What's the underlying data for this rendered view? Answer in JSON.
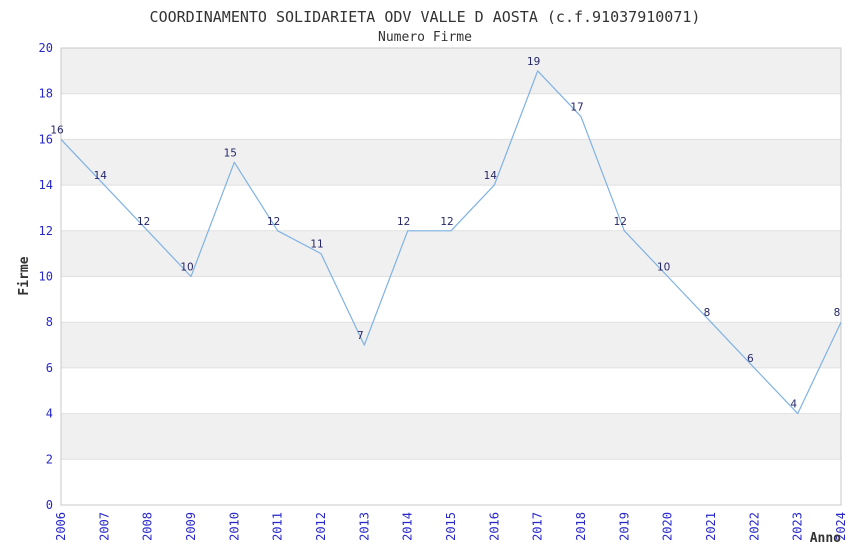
{
  "chart_data": {
    "type": "line",
    "title": "COORDINAMENTO SOLIDARIETA ODV VALLE D AOSTA (c.f.91037910071)",
    "subtitle": "Numero Firme",
    "xlabel": "Anno",
    "ylabel": "Firme",
    "categories": [
      "2006",
      "2007",
      "2008",
      "2009",
      "2010",
      "2011",
      "2012",
      "2013",
      "2014",
      "2015",
      "2016",
      "2017",
      "2018",
      "2019",
      "2020",
      "2021",
      "2022",
      "2023",
      "2024"
    ],
    "series": [
      {
        "name": "Numero Firme",
        "values": [
          16,
          14,
          12,
          10,
          15,
          12,
          11,
          7,
          12,
          12,
          14,
          19,
          17,
          12,
          10,
          8,
          6,
          4,
          8
        ]
      }
    ],
    "ylim": [
      0,
      20
    ],
    "ytick_step": 2,
    "yticks": [
      0,
      2,
      4,
      6,
      8,
      10,
      12,
      14,
      16,
      18,
      20
    ],
    "grid": "horizontal-bands-alternating",
    "legend_position": "none",
    "data_labels_visible": true,
    "x_tick_rotation_deg": -90,
    "colors": {
      "line": "#7FB2E5",
      "data_label": "#26266A",
      "tick_label": "#2727CC",
      "title": "#333333",
      "subtitle": "#333333",
      "axis_title": "#333333",
      "band_fill": "#F0F0F0",
      "gridline": "#E0E0E0",
      "plot_border": "#C8C8C8",
      "background": "#FFFFFF"
    }
  }
}
